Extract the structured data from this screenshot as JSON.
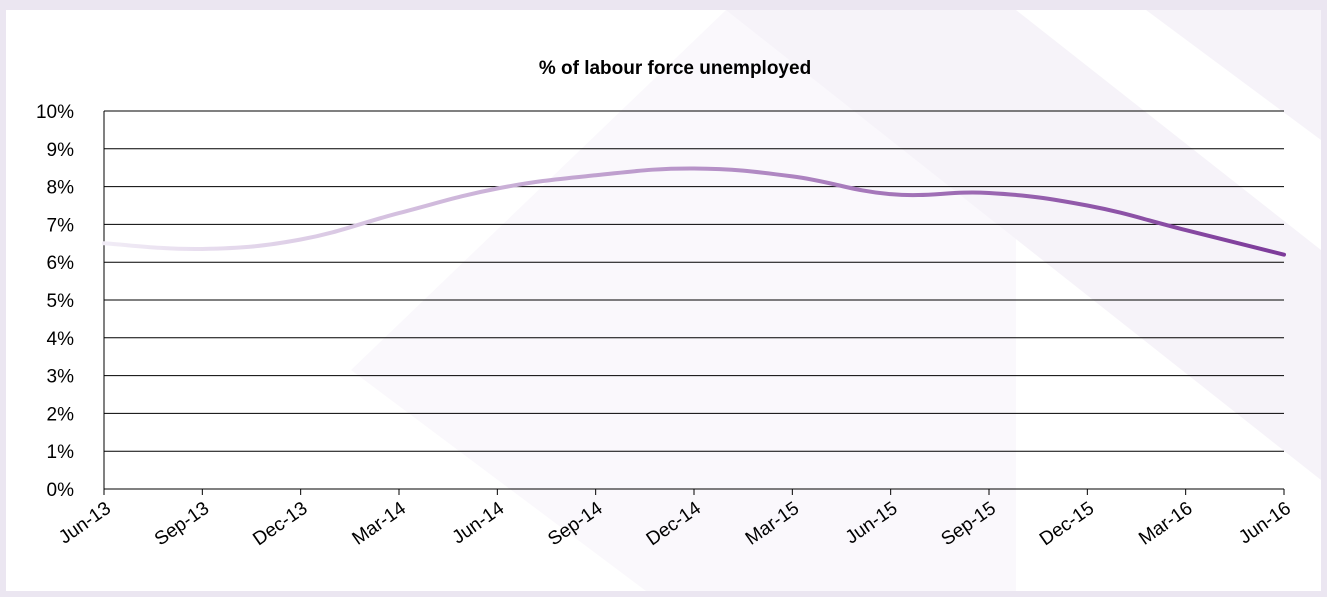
{
  "chart_data": {
    "type": "line",
    "title": "% of labour force unemployed",
    "xlabel": "",
    "ylabel": "",
    "categories": [
      "Jun-13",
      "Sep-13",
      "Dec-13",
      "Mar-14",
      "Jun-14",
      "Sep-14",
      "Dec-14",
      "Mar-15",
      "Jun-15",
      "Sep-15",
      "Dec-15",
      "Mar-16",
      "Jun-16"
    ],
    "y_tick_labels": [
      "0%",
      "1%",
      "2%",
      "3%",
      "4%",
      "5%",
      "6%",
      "7%",
      "8%",
      "9%",
      "10%"
    ],
    "ylim": [
      0,
      10
    ],
    "y_unit": "%",
    "grid": true,
    "legend": "none",
    "series": [
      {
        "values": [
          6.5,
          6.35,
          6.6,
          7.3,
          7.95,
          8.3,
          8.48,
          8.27,
          7.8,
          7.83,
          7.5,
          6.85,
          6.2
        ],
        "color_start": "#f1ecf6",
        "color_end": "#7d3a9a"
      }
    ]
  }
}
